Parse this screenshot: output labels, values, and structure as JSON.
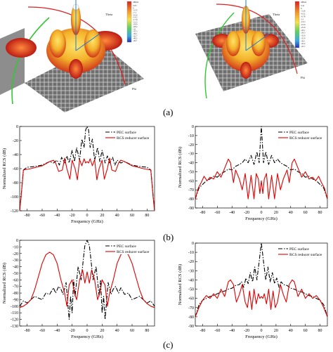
{
  "captions": {
    "a": "(a)",
    "b": "(b)",
    "c": "(c)"
  },
  "colorbar_left": {
    "unit": "dBm2",
    "ticks": [
      "3.65",
      "0",
      "-3.55",
      "-7.1",
      "-10.6",
      "-14.2",
      "-17.8",
      "-21.3",
      "-24.9",
      "-28.4",
      "-32",
      "-35.5",
      "-39.1",
      "-42.7",
      "-46.2",
      "-49.7"
    ]
  },
  "colorbar_right": {
    "unit": "dBm2",
    "ticks": [
      "3.41",
      "0",
      "-3.26",
      "-6.52",
      "-9.78",
      "-13",
      "-16.3",
      "-19.6",
      "-22.8",
      "-26.1",
      "-29.3",
      "-32.6",
      "-35.9",
      "-39.1",
      "-42.4",
      "-45.7"
    ]
  },
  "axis_tag_left": {
    "theta": "Theta",
    "phi": "Phi"
  },
  "axis_tag_right": {
    "theta": "Theta",
    "phi": "Phi"
  },
  "chart_data": [
    {
      "type": "line",
      "xlabel": "Frequency (GHz)",
      "ylabel": "Normalized RCS (dB)",
      "xlim": [
        -90,
        90
      ],
      "ylim": [
        -120,
        0
      ],
      "xticks": [
        -80,
        -60,
        -40,
        -20,
        0,
        20,
        40,
        60,
        80
      ],
      "yticks": [
        -120,
        -100,
        -80,
        -60,
        -40,
        -20,
        0
      ],
      "legend": "top-right",
      "series": [
        {
          "name": "PEC surface",
          "color": "#000000",
          "dash": "6,2,1.5,2",
          "x": [
            -90,
            -88,
            -85,
            -80,
            -70,
            -60,
            -50,
            -45,
            -40,
            -37,
            -34,
            -30,
            -27,
            -24,
            -20,
            -17,
            -14,
            -10,
            -7,
            -4,
            -2,
            0,
            2,
            4,
            7,
            10,
            14,
            17,
            20,
            24,
            27,
            30,
            34,
            37,
            40,
            45,
            50,
            60,
            70,
            80,
            85,
            88,
            90
          ],
          "y": [
            -120,
            -98,
            -62,
            -58,
            -57,
            -55,
            -50,
            -52,
            -48,
            -55,
            -44,
            -52,
            -42,
            -52,
            -34,
            -50,
            -30,
            -48,
            -18,
            -30,
            -5,
            0,
            -5,
            -30,
            -18,
            -48,
            -30,
            -50,
            -34,
            -52,
            -42,
            -52,
            -44,
            -55,
            -48,
            -52,
            -50,
            -55,
            -57,
            -58,
            -62,
            -98,
            -120
          ]
        },
        {
          "name": "RCS reducer surface",
          "color": "#e00000",
          "dash": "",
          "x": [
            -90,
            -88,
            -85,
            -75,
            -60,
            -50,
            -45,
            -42,
            -38,
            -33,
            -30,
            -27,
            -23,
            -20,
            -16,
            -13,
            -10,
            -7,
            -4,
            -2,
            0,
            2,
            4,
            7,
            10,
            13,
            16,
            20,
            23,
            27,
            30,
            33,
            38,
            42,
            45,
            50,
            60,
            75,
            85,
            88,
            90
          ],
          "y": [
            -120,
            -100,
            -62,
            -60,
            -56,
            -50,
            -48,
            -52,
            -64,
            -62,
            -45,
            -60,
            -75,
            -48,
            -60,
            -76,
            -47,
            -56,
            -46,
            -52,
            -50,
            -52,
            -46,
            -56,
            -47,
            -76,
            -60,
            -48,
            -75,
            -60,
            -45,
            -62,
            -64,
            -52,
            -48,
            -50,
            -56,
            -60,
            -62,
            -100,
            -120
          ]
        }
      ]
    },
    {
      "type": "line",
      "xlabel": "Frequency (GHz)",
      "ylabel": "Normalized RCS (dB)",
      "xlim": [
        -90,
        90
      ],
      "ylim": [
        -90,
        0
      ],
      "xticks": [
        -80,
        -60,
        -40,
        -20,
        0,
        20,
        40,
        60,
        80
      ],
      "yticks": [
        -90,
        -80,
        -70,
        -60,
        -50,
        -40,
        -30,
        -20,
        -10,
        0
      ],
      "legend": "top-right",
      "series": [
        {
          "name": "PEC surface",
          "color": "#000000",
          "dash": "6,2,1.5,2",
          "x": [
            -90,
            -85,
            -80,
            -75,
            -70,
            -65,
            -60,
            -55,
            -50,
            -45,
            -40,
            -35,
            -30,
            -26,
            -22,
            -18,
            -14,
            -10,
            -6,
            -3,
            0,
            3,
            6,
            10,
            14,
            18,
            22,
            26,
            30,
            35,
            40,
            45,
            50,
            55,
            60,
            65,
            70,
            75,
            80,
            85,
            90
          ],
          "y": [
            -80,
            -68,
            -64,
            -60,
            -58,
            -55,
            -56,
            -52,
            -50,
            -47,
            -48,
            -44,
            -42,
            -40,
            -36,
            -40,
            -32,
            -42,
            -28,
            -40,
            0,
            -40,
            -28,
            -42,
            -32,
            -40,
            -36,
            -40,
            -42,
            -44,
            -48,
            -47,
            -50,
            -52,
            -56,
            -55,
            -58,
            -60,
            -64,
            -68,
            -80
          ]
        },
        {
          "name": "RCS reducer surface",
          "color": "#e00000",
          "dash": "",
          "x": [
            -90,
            -86,
            -82,
            -78,
            -74,
            -70,
            -65,
            -60,
            -55,
            -50,
            -45,
            -42,
            -38,
            -35,
            -30,
            -26,
            -22,
            -18,
            -14,
            -10,
            -7,
            -4,
            -2,
            0,
            2,
            4,
            7,
            10,
            14,
            18,
            22,
            26,
            30,
            35,
            38,
            42,
            45,
            50,
            55,
            60,
            65,
            70,
            74,
            78,
            82,
            86,
            90
          ],
          "y": [
            -80,
            -68,
            -62,
            -55,
            -60,
            -56,
            -58,
            -50,
            -56,
            -46,
            -36,
            -40,
            -62,
            -48,
            -58,
            -70,
            -52,
            -80,
            -54,
            -80,
            -52,
            -58,
            -74,
            -60,
            -74,
            -58,
            -52,
            -80,
            -54,
            -80,
            -52,
            -70,
            -58,
            -48,
            -62,
            -40,
            -36,
            -46,
            -56,
            -50,
            -58,
            -56,
            -60,
            -55,
            -62,
            -68,
            -80
          ]
        }
      ]
    },
    {
      "type": "line",
      "xlabel": "Frequency (GHz)",
      "ylabel": "Normalized RCS (dB)",
      "xlim": [
        -90,
        90
      ],
      "ylim": [
        -130,
        0
      ],
      "xticks": [
        -80,
        -60,
        -40,
        -20,
        0,
        20,
        40,
        60,
        80
      ],
      "yticks": [
        -130,
        -120,
        -110,
        -100,
        -90,
        -80,
        -70,
        -60,
        -50,
        -40,
        -30,
        -20,
        -10,
        0
      ],
      "legend": "top-right",
      "series": [
        {
          "name": "PEC surface",
          "color": "#000000",
          "dash": "6,2,1.5,2",
          "x": [
            -90,
            -85,
            -80,
            -70,
            -60,
            -55,
            -50,
            -45,
            -42,
            -38,
            -35,
            -32,
            -28,
            -24,
            -22,
            -20,
            -18,
            -16,
            -12,
            -8,
            -5,
            -3,
            0,
            3,
            5,
            8,
            12,
            16,
            18,
            20,
            22,
            24,
            28,
            32,
            35,
            38,
            42,
            45,
            50,
            55,
            60,
            70,
            80,
            85,
            90
          ],
          "y": [
            -100,
            -92,
            -95,
            -85,
            -90,
            -80,
            -82,
            -72,
            -80,
            -70,
            -74,
            -82,
            -64,
            -120,
            -85,
            -110,
            -60,
            -85,
            -40,
            -60,
            -28,
            -8,
            0,
            -8,
            -28,
            -60,
            -40,
            -85,
            -60,
            -110,
            -85,
            -120,
            -64,
            -82,
            -74,
            -70,
            -80,
            -72,
            -82,
            -80,
            -90,
            -85,
            -95,
            -92,
            -100
          ]
        },
        {
          "name": "RCS reducer surface",
          "color": "#e00000",
          "dash": "",
          "x": [
            -90,
            -85,
            -80,
            -75,
            -70,
            -65,
            -60,
            -55,
            -50,
            -45,
            -40,
            -35,
            -30,
            -27,
            -24,
            -20,
            -17,
            -14,
            -10,
            -6,
            -3,
            0,
            3,
            6,
            10,
            14,
            17,
            20,
            24,
            27,
            30,
            35,
            40,
            45,
            50,
            55,
            60,
            65,
            70,
            75,
            80,
            85,
            90
          ],
          "y": [
            -102,
            -100,
            -96,
            -90,
            -75,
            -55,
            -35,
            -22,
            -18,
            -22,
            -35,
            -60,
            -80,
            -100,
            -68,
            -60,
            -80,
            -90,
            -60,
            -45,
            -65,
            -48,
            -65,
            -45,
            -60,
            -90,
            -80,
            -60,
            -68,
            -100,
            -80,
            -60,
            -35,
            -22,
            -18,
            -22,
            -35,
            -55,
            -75,
            -90,
            -96,
            -100,
            -102
          ]
        }
      ]
    },
    {
      "type": "line",
      "xlabel": "Frequency (GHz)",
      "ylabel": "Normalized RCS (dB)",
      "xlim": [
        -90,
        90
      ],
      "ylim": [
        -90,
        0
      ],
      "xticks": [
        -80,
        -60,
        -40,
        -20,
        0,
        20,
        40,
        60,
        80
      ],
      "yticks": [
        -90,
        -80,
        -70,
        -60,
        -50,
        -40,
        -30,
        -20,
        -10,
        0
      ],
      "legend": "top-right",
      "series": [
        {
          "name": "PEC surface",
          "color": "#000000",
          "dash": "6,2,1.5,2",
          "x": [
            -90,
            -85,
            -80,
            -75,
            -70,
            -65,
            -60,
            -55,
            -50,
            -45,
            -40,
            -35,
            -30,
            -27,
            -24,
            -21,
            -18,
            -15,
            -12,
            -9,
            -6,
            -3,
            0,
            3,
            6,
            9,
            12,
            15,
            18,
            21,
            24,
            27,
            30,
            35,
            40,
            45,
            50,
            55,
            60,
            65,
            70,
            75,
            80,
            85,
            90
          ],
          "y": [
            -80,
            -67,
            -62,
            -60,
            -58,
            -57,
            -55,
            -53,
            -52,
            -50,
            -49,
            -46,
            -45,
            -42,
            -48,
            -38,
            -44,
            -32,
            -42,
            -26,
            -40,
            -20,
            0,
            -20,
            -40,
            -26,
            -42,
            -32,
            -44,
            -38,
            -48,
            -42,
            -45,
            -46,
            -49,
            -50,
            -52,
            -53,
            -55,
            -57,
            -58,
            -60,
            -62,
            -67,
            -80
          ]
        },
        {
          "name": "RCS reducer surface",
          "color": "#e00000",
          "dash": "",
          "x": [
            -90,
            -85,
            -80,
            -75,
            -70,
            -65,
            -60,
            -55,
            -50,
            -45,
            -42,
            -38,
            -34,
            -30,
            -26,
            -22,
            -19,
            -16,
            -13,
            -10,
            -7,
            -4,
            -2,
            0,
            2,
            4,
            7,
            10,
            13,
            16,
            19,
            22,
            26,
            30,
            34,
            38,
            42,
            45,
            50,
            55,
            60,
            65,
            70,
            75,
            80,
            85,
            90
          ],
          "y": [
            -80,
            -70,
            -62,
            -57,
            -60,
            -55,
            -60,
            -50,
            -58,
            -42,
            -40,
            -45,
            -64,
            -56,
            -45,
            -64,
            -70,
            -52,
            -72,
            -50,
            -66,
            -55,
            -60,
            -58,
            -60,
            -55,
            -66,
            -50,
            -72,
            -52,
            -70,
            -64,
            -45,
            -56,
            -64,
            -45,
            -40,
            -42,
            -58,
            -50,
            -60,
            -55,
            -60,
            -57,
            -62,
            -70,
            -80
          ]
        }
      ]
    }
  ]
}
